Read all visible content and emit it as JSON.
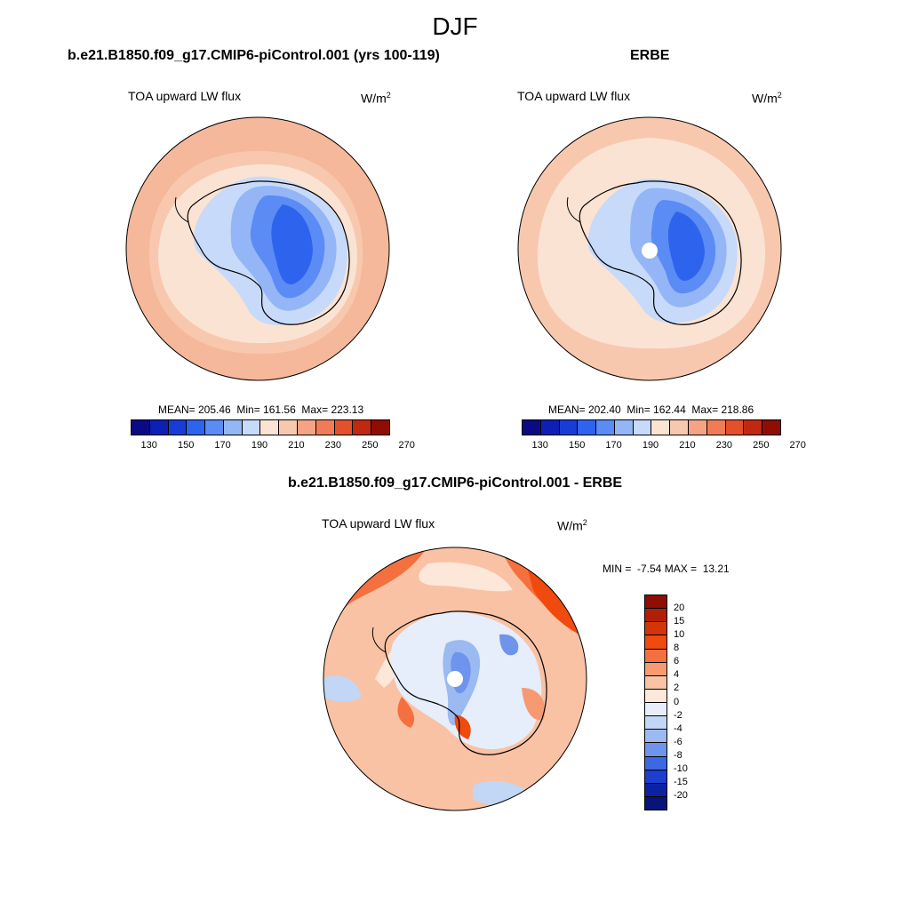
{
  "figure": {
    "title": "DJF"
  },
  "panels": {
    "model": {
      "title": "b.e21.B1850.f09_g17.CMIP6-piControl.001 (yrs 100-119)",
      "variable": "TOA upward LW flux",
      "units_base": "W/m",
      "units_exp": "2",
      "stats": "MEAN= 205.46  Min= 161.56  Max= 223.13"
    },
    "obs": {
      "title": "ERBE",
      "variable": "TOA upward LW flux",
      "units_base": "W/m",
      "units_exp": "2",
      "stats": "MEAN= 202.40  Min= 162.44  Max= 218.86"
    },
    "diff": {
      "title": "b.e21.B1850.f09_g17.CMIP6-piControl.001 - ERBE",
      "variable": "TOA upward LW flux",
      "units_base": "W/m",
      "units_exp": "2",
      "stats": "MIN =  -7.54 MAX =  13.21"
    }
  },
  "colorbars": {
    "absolute": {
      "tick_labels": [
        "130",
        "150",
        "170",
        "190",
        "210",
        "230",
        "250",
        "270"
      ],
      "colors": [
        "#0a0a82",
        "#0d1fb4",
        "#1a3cd6",
        "#2e63ee",
        "#5b8bf5",
        "#94b6f7",
        "#c7daf9",
        "#fbe3d3",
        "#f8c8ae",
        "#f5a384",
        "#f07c57",
        "#e2502c",
        "#c0280f",
        "#8e0d05"
      ]
    },
    "difference": {
      "tick_labels": [
        "20",
        "15",
        "10",
        "8",
        "6",
        "4",
        "2",
        "0",
        "-2",
        "-4",
        "-6",
        "-8",
        "-10",
        "-15",
        "-20"
      ],
      "colors": [
        "#8e0d05",
        "#b01e05",
        "#d43508",
        "#f04a0e",
        "#f5703f",
        "#f79a72",
        "#f9c2a4",
        "#fde7d8",
        "#e6eefb",
        "#c2d6f6",
        "#9bbaf1",
        "#6e95eb",
        "#3d68e4",
        "#1c3fd1",
        "#0d22a3",
        "#08147a"
      ]
    }
  }
}
